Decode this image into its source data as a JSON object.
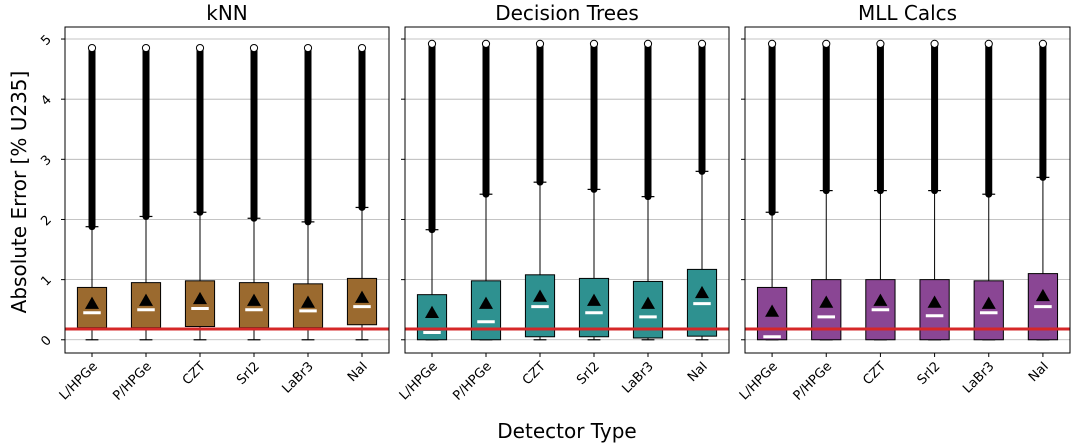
{
  "chart_data": {
    "type": "box",
    "ylabel": "Absolute Error [% U235]",
    "xlabel": "Detector Type",
    "categories": [
      "L/HPGe",
      "P/HPGe",
      "CZT",
      "SrI2",
      "LaBr3",
      "NaI"
    ],
    "ylim": [
      -0.22,
      5.2
    ],
    "yticks": [
      "0",
      "1",
      "2",
      "3",
      "4",
      "5"
    ],
    "grid": "horizontal",
    "reference_line": {
      "y": 0.18,
      "color": "#d62728"
    },
    "panels": [
      {
        "title": "kNN",
        "color": "#9b6a2f",
        "boxes": [
          {
            "category": "L/HPGe",
            "whisker_low": 0.0,
            "q1": 0.2,
            "median": 0.45,
            "q3": 0.87,
            "whisker_high": 1.88,
            "mean": 0.6,
            "outlier_max": 4.85
          },
          {
            "category": "P/HPGe",
            "whisker_low": 0.0,
            "q1": 0.2,
            "median": 0.5,
            "q3": 0.95,
            "whisker_high": 2.05,
            "mean": 0.65,
            "outlier_max": 4.85
          },
          {
            "category": "CZT",
            "whisker_low": 0.0,
            "q1": 0.22,
            "median": 0.52,
            "q3": 0.98,
            "whisker_high": 2.12,
            "mean": 0.68,
            "outlier_max": 4.85
          },
          {
            "category": "SrI2",
            "whisker_low": 0.0,
            "q1": 0.2,
            "median": 0.5,
            "q3": 0.95,
            "whisker_high": 2.02,
            "mean": 0.65,
            "outlier_max": 4.85
          },
          {
            "category": "LaBr3",
            "whisker_low": 0.0,
            "q1": 0.2,
            "median": 0.48,
            "q3": 0.93,
            "whisker_high": 1.96,
            "mean": 0.62,
            "outlier_max": 4.85
          },
          {
            "category": "NaI",
            "whisker_low": 0.0,
            "q1": 0.25,
            "median": 0.55,
            "q3": 1.02,
            "whisker_high": 2.2,
            "mean": 0.7,
            "outlier_max": 4.85
          }
        ]
      },
      {
        "title": "Decision Trees",
        "color": "#2e9190",
        "boxes": [
          {
            "category": "L/HPGe",
            "whisker_low": 0.0,
            "q1": 0.0,
            "median": 0.12,
            "q3": 0.75,
            "whisker_high": 1.83,
            "mean": 0.45,
            "outlier_max": 4.92
          },
          {
            "category": "P/HPGe",
            "whisker_low": 0.0,
            "q1": 0.0,
            "median": 0.3,
            "q3": 0.98,
            "whisker_high": 2.42,
            "mean": 0.6,
            "outlier_max": 4.92
          },
          {
            "category": "CZT",
            "whisker_low": 0.0,
            "q1": 0.05,
            "median": 0.55,
            "q3": 1.08,
            "whisker_high": 2.62,
            "mean": 0.72,
            "outlier_max": 4.92
          },
          {
            "category": "SrI2",
            "whisker_low": 0.0,
            "q1": 0.05,
            "median": 0.45,
            "q3": 1.02,
            "whisker_high": 2.5,
            "mean": 0.65,
            "outlier_max": 4.92
          },
          {
            "category": "LaBr3",
            "whisker_low": 0.0,
            "q1": 0.03,
            "median": 0.38,
            "q3": 0.97,
            "whisker_high": 2.38,
            "mean": 0.6,
            "outlier_max": 4.92
          },
          {
            "category": "NaI",
            "whisker_low": 0.0,
            "q1": 0.06,
            "median": 0.6,
            "q3": 1.17,
            "whisker_high": 2.8,
            "mean": 0.78,
            "outlier_max": 4.92
          }
        ]
      },
      {
        "title": "MLL Calcs",
        "color": "#8a4694",
        "boxes": [
          {
            "category": "L/HPGe",
            "whisker_low": 0.0,
            "q1": 0.0,
            "median": 0.05,
            "q3": 0.87,
            "whisker_high": 2.12,
            "mean": 0.47,
            "outlier_max": 4.92
          },
          {
            "category": "P/HPGe",
            "whisker_low": 0.0,
            "q1": 0.0,
            "median": 0.38,
            "q3": 1.0,
            "whisker_high": 2.48,
            "mean": 0.62,
            "outlier_max": 4.92
          },
          {
            "category": "CZT",
            "whisker_low": 0.0,
            "q1": 0.0,
            "median": 0.5,
            "q3": 1.0,
            "whisker_high": 2.48,
            "mean": 0.65,
            "outlier_max": 4.92
          },
          {
            "category": "SrI2",
            "whisker_low": 0.0,
            "q1": 0.0,
            "median": 0.4,
            "q3": 1.0,
            "whisker_high": 2.48,
            "mean": 0.62,
            "outlier_max": 4.92
          },
          {
            "category": "LaBr3",
            "whisker_low": 0.0,
            "q1": 0.0,
            "median": 0.45,
            "q3": 0.98,
            "whisker_high": 2.42,
            "mean": 0.6,
            "outlier_max": 4.92
          },
          {
            "category": "NaI",
            "whisker_low": 0.0,
            "q1": 0.0,
            "median": 0.55,
            "q3": 1.1,
            "whisker_high": 2.7,
            "mean": 0.73,
            "outlier_max": 4.92
          }
        ]
      }
    ]
  }
}
